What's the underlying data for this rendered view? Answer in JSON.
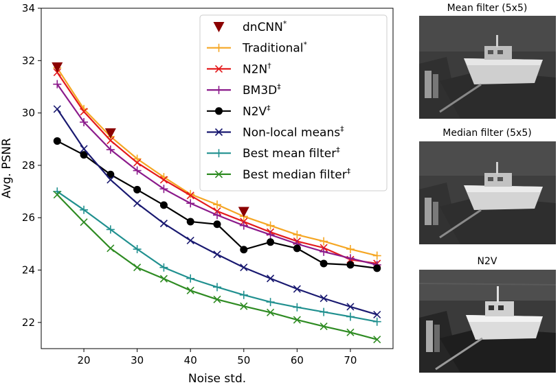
{
  "chart_data": {
    "type": "line",
    "xlabel": "Noise std.",
    "ylabel": "Avg. PSNR",
    "xlim": [
      12,
      78
    ],
    "ylim": [
      21,
      34
    ],
    "xticks": [
      20,
      30,
      40,
      50,
      60,
      70
    ],
    "yticks": [
      22,
      24,
      26,
      28,
      30,
      32,
      34
    ],
    "grid": false,
    "legend_position": "top-right",
    "series": [
      {
        "name": "dnCNN",
        "superscript": "*",
        "color": "#8b0000",
        "marker": "triangle-down",
        "line": false,
        "x": [
          15,
          25,
          50
        ],
        "y": [
          31.75,
          29.23,
          26.23
        ]
      },
      {
        "name": "Traditional",
        "superscript": "*",
        "color": "#f5a623",
        "marker": "plus",
        "line": true,
        "x": [
          15,
          20,
          25,
          30,
          35,
          40,
          45,
          50,
          55,
          60,
          65,
          70,
          75
        ],
        "y": [
          31.72,
          30.15,
          29.1,
          28.25,
          27.55,
          26.9,
          26.5,
          26.05,
          25.7,
          25.35,
          25.1,
          24.8,
          24.55
        ]
      },
      {
        "name": "N2N",
        "superscript": "†",
        "color": "#e41a1c",
        "marker": "x",
        "line": true,
        "x": [
          15,
          20,
          25,
          30,
          35,
          40,
          45,
          50,
          55,
          60,
          65,
          70,
          75
        ],
        "y": [
          31.55,
          30.05,
          28.95,
          28.1,
          27.45,
          26.85,
          26.25,
          25.85,
          25.45,
          25.1,
          24.85,
          24.4,
          24.25
        ]
      },
      {
        "name": "BM3D",
        "superscript": "‡",
        "color": "#8b1a8b",
        "marker": "plus",
        "line": true,
        "x": [
          15,
          20,
          25,
          30,
          35,
          40,
          45,
          50,
          55,
          60,
          65,
          70,
          75
        ],
        "y": [
          31.1,
          29.65,
          28.6,
          27.8,
          27.1,
          26.55,
          26.1,
          25.7,
          25.35,
          25.0,
          24.7,
          24.45,
          24.2
        ]
      },
      {
        "name": "N2V",
        "superscript": "‡",
        "color": "#000000",
        "marker": "circle",
        "line": true,
        "x": [
          15,
          20,
          25,
          30,
          35,
          40,
          45,
          50,
          55,
          60,
          65,
          70,
          75
        ],
        "y": [
          28.93,
          28.4,
          27.65,
          27.07,
          26.48,
          25.85,
          25.75,
          24.78,
          25.07,
          24.83,
          24.25,
          24.2,
          24.07
        ]
      },
      {
        "name": "Non-local means",
        "superscript": "‡",
        "color": "#191970",
        "marker": "x",
        "line": true,
        "x": [
          15,
          20,
          25,
          30,
          35,
          40,
          45,
          50,
          55,
          60,
          65,
          70,
          75
        ],
        "y": [
          30.15,
          28.63,
          27.45,
          26.55,
          25.78,
          25.13,
          24.6,
          24.1,
          23.68,
          23.28,
          22.92,
          22.6,
          22.3
        ]
      },
      {
        "name": "Best mean filter",
        "superscript": "‡",
        "color": "#20908f",
        "marker": "plus",
        "line": true,
        "x": [
          15,
          20,
          25,
          30,
          35,
          40,
          45,
          50,
          55,
          60,
          65,
          70,
          75
        ],
        "y": [
          27.0,
          26.3,
          25.55,
          24.8,
          24.1,
          23.68,
          23.35,
          23.05,
          22.78,
          22.58,
          22.4,
          22.22,
          22.03
        ]
      },
      {
        "name": "Best median filter",
        "superscript": "‡",
        "color": "#2e8b22",
        "marker": "x",
        "line": true,
        "x": [
          15,
          20,
          25,
          30,
          35,
          40,
          45,
          50,
          55,
          60,
          65,
          70,
          75
        ],
        "y": [
          26.88,
          25.83,
          24.83,
          24.1,
          23.67,
          23.22,
          22.88,
          22.62,
          22.38,
          22.1,
          21.85,
          21.62,
          21.35
        ]
      }
    ]
  },
  "panels": [
    {
      "title": "Mean filter (5x5)",
      "image": "boat-mean-filter-image"
    },
    {
      "title": "Median filter (5x5)",
      "image": "boat-median-filter-image"
    },
    {
      "title": "N2V",
      "image": "boat-n2v-image"
    }
  ]
}
